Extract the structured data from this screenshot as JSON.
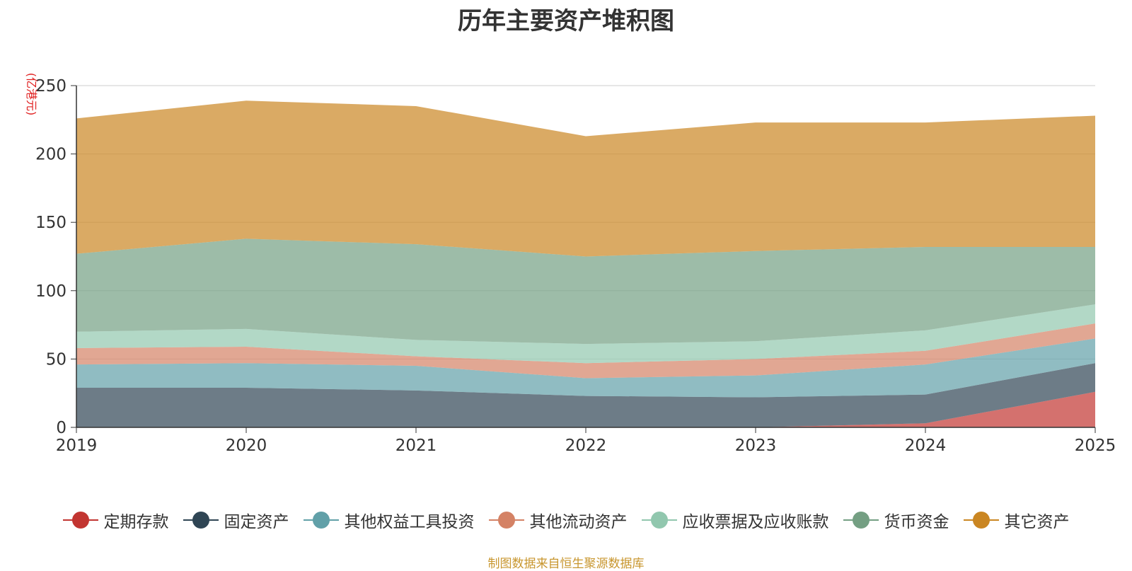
{
  "chart_data": {
    "type": "area",
    "stacked": true,
    "title": "历年主要资产堆积图",
    "unit_label": "(亿港元)",
    "x": [
      "2019",
      "2020",
      "2021",
      "2022",
      "2023",
      "2024",
      "2025"
    ],
    "ylim": [
      0,
      250
    ],
    "yticks": [
      "0",
      "50",
      "100",
      "150",
      "200",
      "250"
    ],
    "series": [
      {
        "name": "定期存款",
        "color": "#c23531",
        "values": [
          0,
          0,
          0,
          0,
          0,
          3,
          26
        ]
      },
      {
        "name": "固定资产",
        "color": "#2f4554",
        "values": [
          29,
          29,
          27,
          23,
          22,
          21,
          21
        ]
      },
      {
        "name": "其他权益工具投资",
        "color": "#61a0a8",
        "values": [
          17,
          18,
          18,
          13,
          16,
          22,
          18
        ]
      },
      {
        "name": "其他流动资产",
        "color": "#d48265",
        "values": [
          12,
          12,
          7,
          11,
          12,
          10,
          11
        ]
      },
      {
        "name": "应收票据及应收账款",
        "color": "#91c7ae",
        "values": [
          12,
          13,
          12,
          14,
          13,
          15,
          14
        ]
      },
      {
        "name": "货币资金",
        "color": "#749f83",
        "values": [
          57,
          66,
          70,
          64,
          66,
          61,
          42
        ]
      },
      {
        "name": "其它资产",
        "color": "#ca8622",
        "values": [
          99,
          101,
          101,
          88,
          94,
          91,
          96
        ]
      }
    ]
  },
  "source_note": "制图数据来自恒生聚源数据库"
}
